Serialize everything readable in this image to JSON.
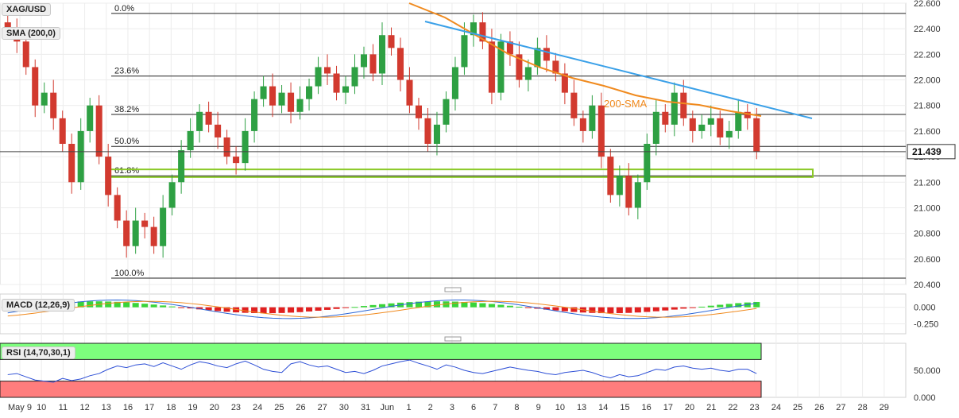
{
  "symbol": "XAG/USD",
  "indicators": {
    "sma": "SMA (200,0)",
    "macd": "MACD (12,26,9)",
    "rsi": "RSI (14,70,30,1)"
  },
  "annotations": {
    "sma_label": "200-SMA"
  },
  "current_price": "21.439",
  "colors": {
    "bull": "#2ea043",
    "bear": "#d23a2f",
    "sma": "#f08a1e",
    "trend": "#3aa0e8",
    "support": "#8ac926",
    "macd": "#2d67d6",
    "signal": "#f08a1e",
    "rsi_overbought": "#7dff7d",
    "rsi_oversold": "#ff7d7d",
    "rsi_line": "#2d4fd6"
  },
  "chart_data": [
    {
      "type": "candlestick",
      "x_ticks": [
        "May 9",
        "10",
        "11",
        "12",
        "13",
        "16",
        "17",
        "18",
        "19",
        "20",
        "23",
        "24",
        "25",
        "26",
        "27",
        "30",
        "31",
        "Jun",
        "1",
        "2",
        "3",
        "6",
        "7",
        "8",
        "9",
        "10",
        "13",
        "14",
        "15",
        "16",
        "17",
        "20",
        "21",
        "22",
        "23",
        "24",
        "25",
        "26",
        "27",
        "28",
        "29"
      ],
      "y_ticks": [
        "22.600",
        "22.400",
        "22.200",
        "22.000",
        "21.800",
        "21.600",
        "21.400",
        "21.200",
        "21.000",
        "20.800",
        "20.600",
        "20.400"
      ],
      "ylim": [
        20.4,
        22.6
      ],
      "closes": [
        22.4,
        22.3,
        22.1,
        21.8,
        21.9,
        21.7,
        21.5,
        21.2,
        21.6,
        21.8,
        21.4,
        21.1,
        20.9,
        20.7,
        20.9,
        20.85,
        20.7,
        21.0,
        21.2,
        21.45,
        21.6,
        21.75,
        21.65,
        21.55,
        21.4,
        21.35,
        21.6,
        21.85,
        21.95,
        21.8,
        21.9,
        21.75,
        21.85,
        21.95,
        22.1,
        22.05,
        21.9,
        21.95,
        22.1,
        22.2,
        22.05,
        22.35,
        22.25,
        22.0,
        21.8,
        21.7,
        21.5,
        21.65,
        21.85,
        22.1,
        22.35,
        22.45,
        22.3,
        21.9,
        22.3,
        22.2,
        22.0,
        22.1,
        22.25,
        22.15,
        22.05,
        21.9,
        21.7,
        21.6,
        21.8,
        21.4,
        21.1,
        21.25,
        21.0,
        21.2,
        21.5,
        21.75,
        21.65,
        21.9,
        21.7,
        21.6,
        21.65,
        21.7,
        21.55,
        21.6,
        21.75,
        21.7,
        21.44
      ],
      "fib_levels": [
        {
          "label": "0.0%",
          "value": 22.52
        },
        {
          "label": "23.6%",
          "value": 22.03
        },
        {
          "label": "38.2%",
          "value": 21.73
        },
        {
          "label": "50.0%",
          "value": 21.48
        },
        {
          "label": "61.8%",
          "value": 21.25
        },
        {
          "label": "100.0%",
          "value": 20.45
        }
      ]
    },
    {
      "type": "macd",
      "y_ticks": [
        "0.000",
        "-0.250"
      ],
      "ylim": [
        -0.4,
        0.2
      ]
    },
    {
      "type": "rsi",
      "y_ticks": [
        "50.000",
        "0.000"
      ],
      "ylim": [
        0,
        100
      ],
      "overbought": 70,
      "oversold": 30,
      "values": [
        42,
        44,
        38,
        32,
        30,
        28,
        35,
        31,
        34,
        40,
        44,
        52,
        58,
        55,
        60,
        62,
        57,
        64,
        58,
        52,
        60,
        66,
        63,
        58,
        55,
        62,
        67,
        60,
        52,
        48,
        46,
        62,
        66,
        60,
        56,
        58,
        52,
        46,
        48,
        44,
        50,
        58,
        62,
        66,
        69,
        63,
        58,
        52,
        60,
        56,
        50,
        46,
        44,
        48,
        52,
        56,
        53,
        50,
        48,
        44,
        42,
        46,
        48,
        50,
        46,
        40,
        36,
        42,
        38,
        40,
        46,
        52,
        50,
        56,
        58,
        54,
        52,
        54,
        50,
        48,
        52,
        52,
        44
      ]
    }
  ]
}
